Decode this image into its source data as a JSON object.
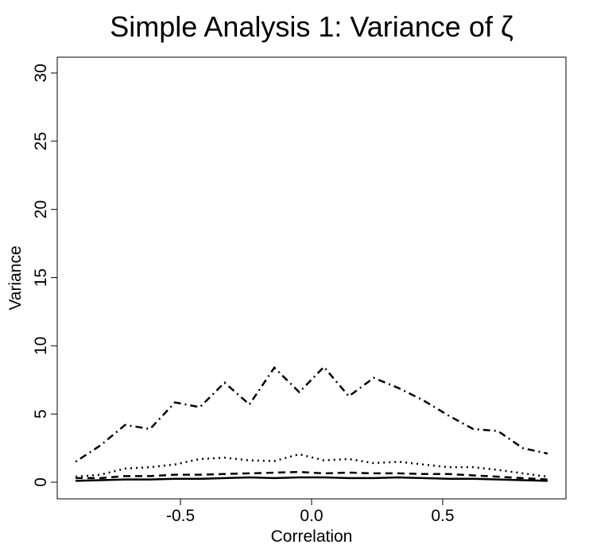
{
  "chart_data": {
    "type": "line",
    "title": "Simple Analysis 1: Variance of ζ",
    "x_label": "Correlation",
    "y_label": "Variance",
    "x": [
      -0.9,
      -0.805,
      -0.711,
      -0.616,
      -0.521,
      -0.426,
      -0.332,
      -0.237,
      -0.142,
      -0.047,
      0.047,
      0.142,
      0.237,
      0.332,
      0.426,
      0.521,
      0.616,
      0.711,
      0.805,
      0.9
    ],
    "series": [
      {
        "color": "#000000",
        "dash": "solid",
        "values": [
          0.1,
          0.15,
          0.2,
          0.2,
          0.25,
          0.25,
          0.3,
          0.35,
          0.3,
          0.35,
          0.35,
          0.3,
          0.3,
          0.35,
          0.3,
          0.25,
          0.25,
          0.2,
          0.15,
          0.1
        ]
      },
      {
        "color": "#000000",
        "dash": "dashed",
        "values": [
          0.3,
          0.3,
          0.45,
          0.45,
          0.55,
          0.55,
          0.6,
          0.65,
          0.7,
          0.75,
          0.65,
          0.7,
          0.65,
          0.65,
          0.6,
          0.6,
          0.5,
          0.4,
          0.3,
          0.2
        ]
      },
      {
        "color": "#000000",
        "dash": "dotted",
        "values": [
          0.4,
          0.55,
          1.0,
          1.1,
          1.3,
          1.7,
          1.8,
          1.6,
          1.55,
          2.05,
          1.6,
          1.7,
          1.4,
          1.5,
          1.3,
          1.1,
          1.1,
          0.9,
          0.65,
          0.4
        ]
      },
      {
        "color": "#000000",
        "dash": "dotdash",
        "values": [
          1.5,
          2.7,
          4.2,
          3.9,
          5.85,
          5.5,
          7.3,
          5.7,
          8.4,
          6.6,
          8.45,
          6.3,
          7.65,
          6.9,
          6.0,
          4.9,
          3.9,
          3.75,
          2.5,
          2.1
        ]
      }
    ],
    "xlim": [
      -0.97,
      0.97
    ],
    "ylim": [
      -1.22,
      31.16
    ],
    "xticks": [
      -0.5,
      {
        "value": 0,
        "label": "0.0"
      },
      0.5
    ],
    "yticks": [
      0,
      5,
      10,
      15,
      20,
      25,
      30
    ]
  }
}
